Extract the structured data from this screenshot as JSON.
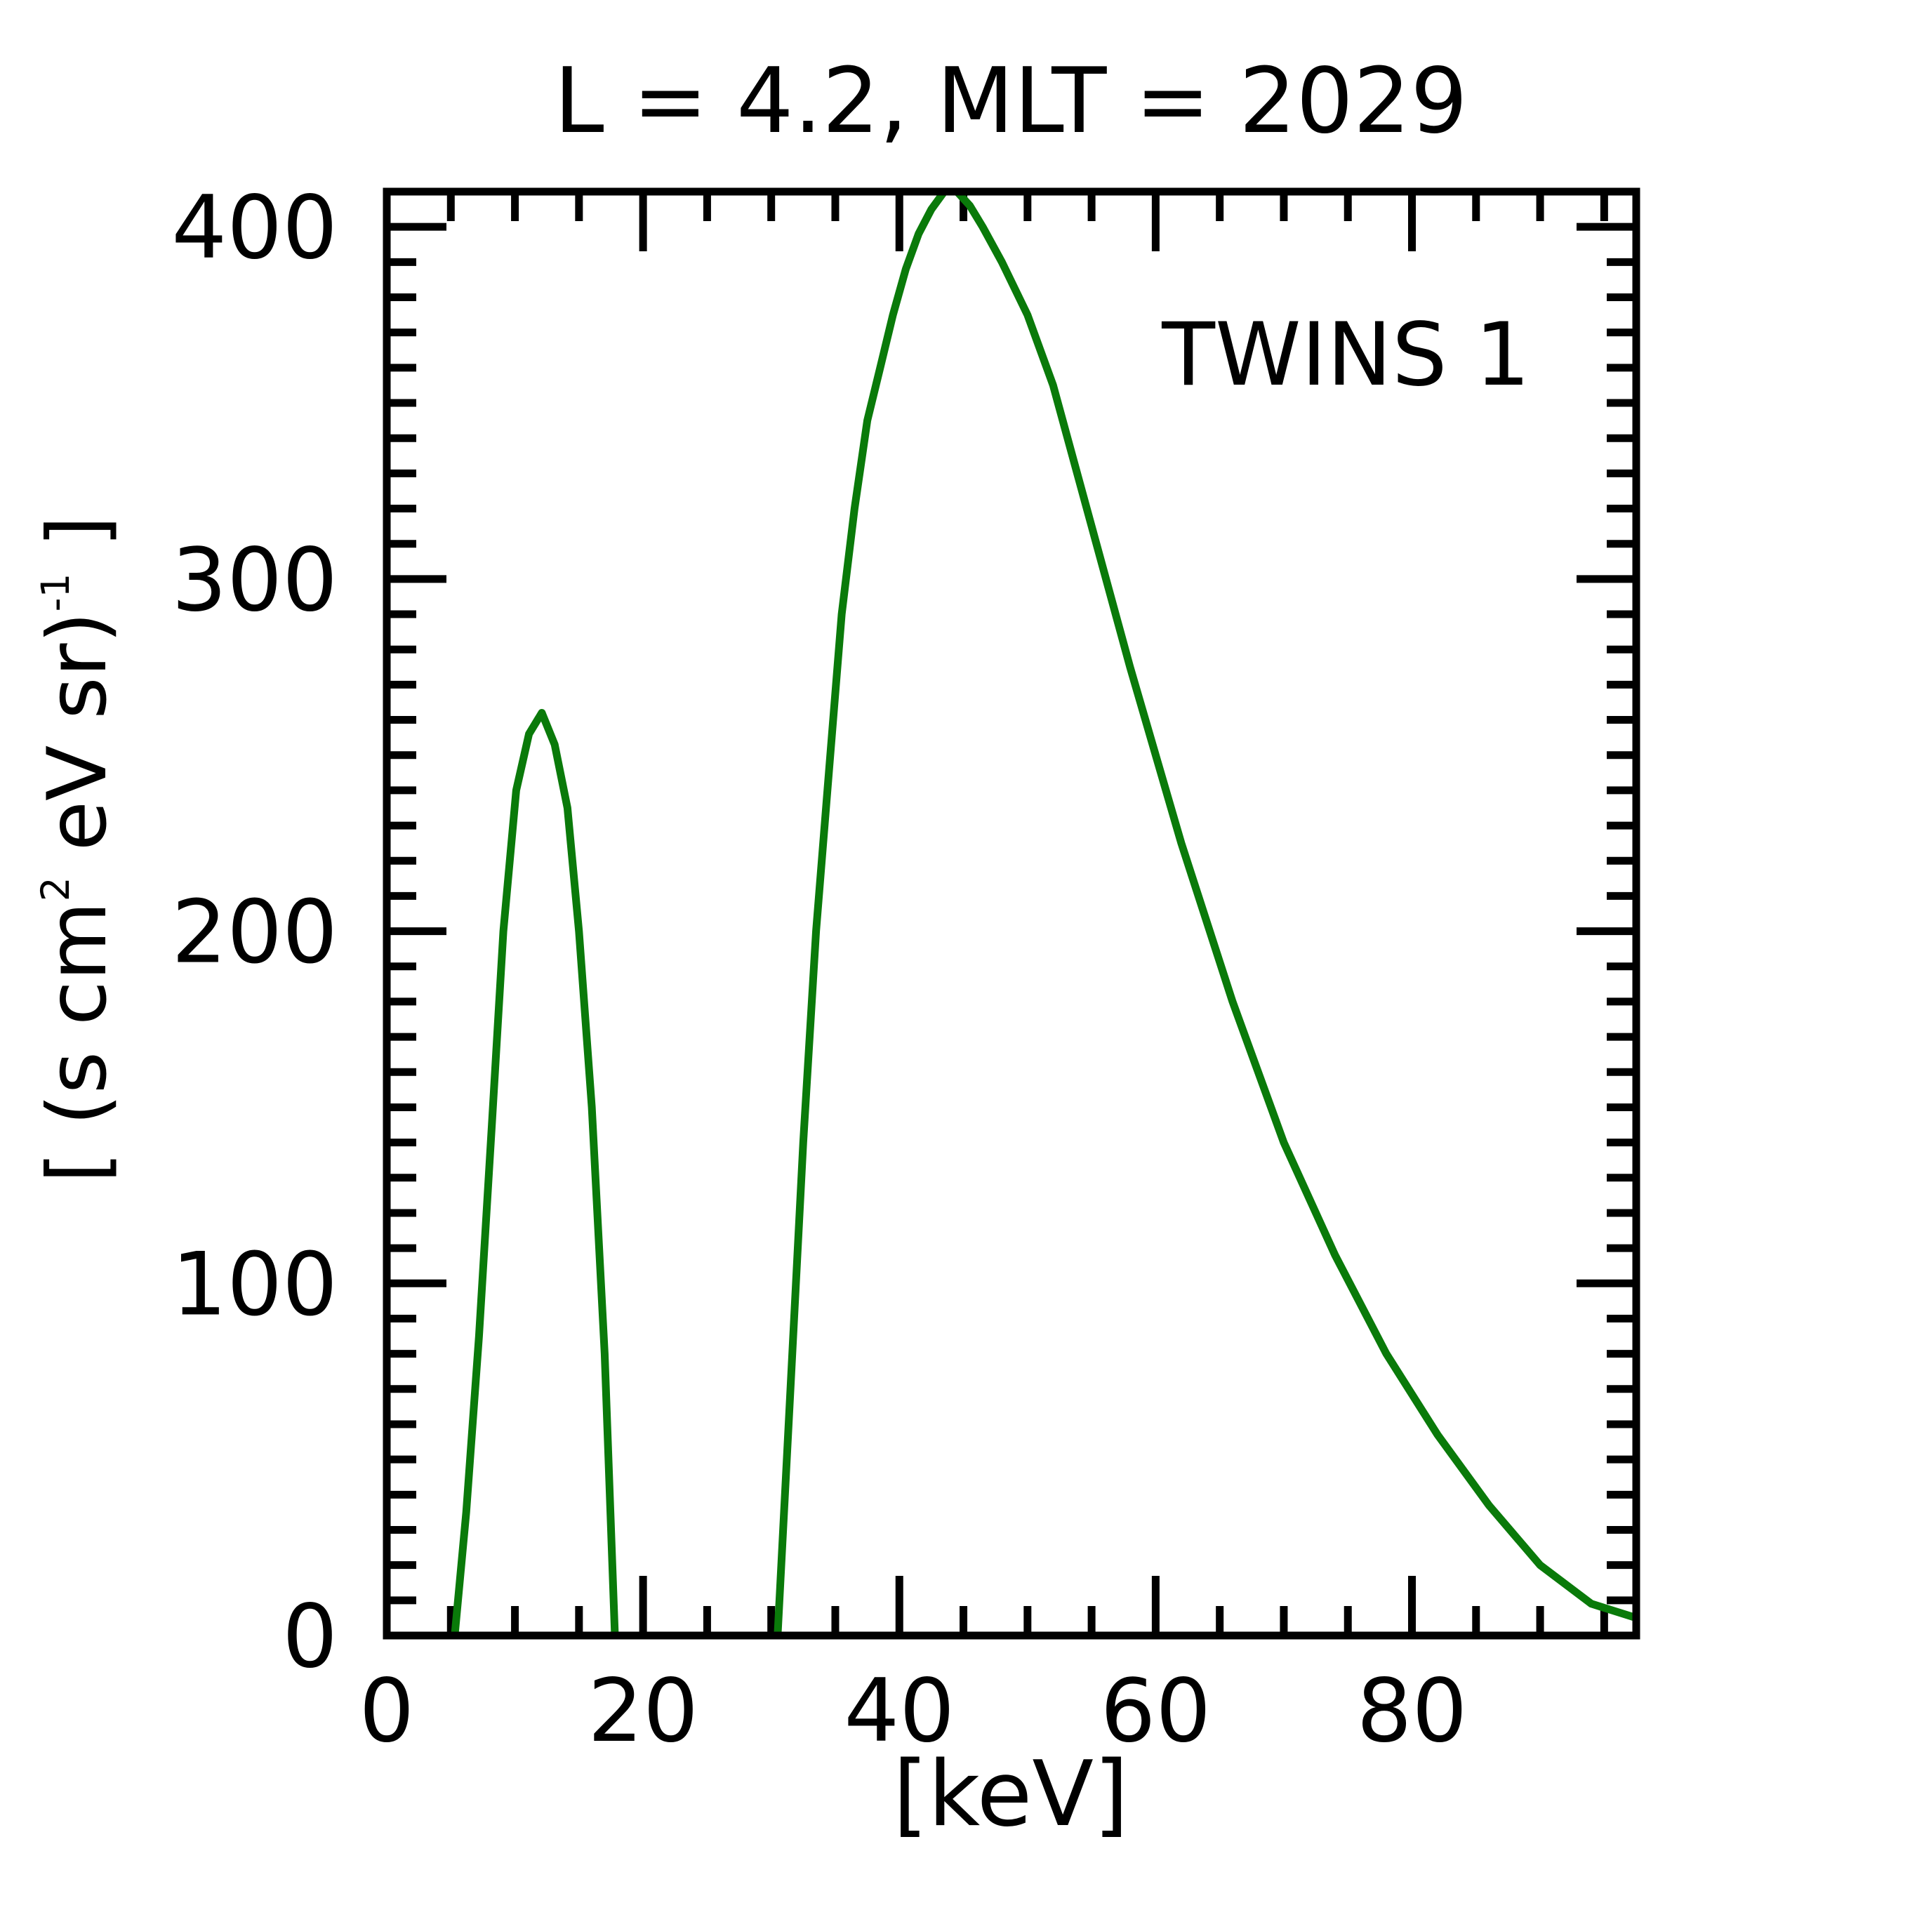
{
  "chart_data": {
    "type": "line",
    "title": "L =  4.2, MLT = 2029",
    "xlabel": "[keV]",
    "ylabel_parts": {
      "open": "[ (s cm",
      "sup1": "2",
      "mid": " eV sr)",
      "sup2": "-1",
      "close": " ]"
    },
    "xlim": [
      0,
      97.5
    ],
    "ylim": [
      0,
      410
    ],
    "x_ticks": [
      0,
      20,
      40,
      60,
      80
    ],
    "x_tick_labels": [
      "0",
      "20",
      "40",
      "60",
      "80"
    ],
    "y_ticks": [
      0,
      100,
      200,
      300,
      400
    ],
    "y_tick_labels": [
      "0",
      "100",
      "200",
      "300",
      "400"
    ],
    "x_minor_step": 5,
    "y_minor_step": 10,
    "grid": false,
    "legend_position": "top-right",
    "series": [
      {
        "name": "TWINS 1",
        "color": "#0a7a0a",
        "segments": [
          {
            "x": [
              5.3,
              6.2,
              7.2,
              8.2,
              9.1,
              10.1,
              11.1,
              12.1,
              13.1,
              14.1,
              15.0,
              16.0,
              17.0,
              17.8
            ],
            "y": [
              0,
              35,
              85,
              145,
              200,
              240,
              256,
              262,
              253,
              235,
              200,
              150,
              80,
              0
            ]
          },
          {
            "x": [
              30.5,
              31.5,
              32.5,
              33.5,
              34.5,
              35.5,
              36.5,
              37.5,
              38.5,
              39.5,
              40.5,
              41.5,
              42.5,
              43.5,
              44.5,
              45.5,
              46.5,
              48,
              50,
              52,
              55,
              58,
              62,
              66,
              70,
              74,
              78,
              82,
              86,
              90,
              94,
              97.5
            ],
            "y": [
              0,
              70,
              140,
              200,
              245,
              290,
              320,
              345,
              360,
              375,
              388,
              398,
              405,
              410,
              410,
              406,
              400,
              390,
              375,
              355,
              315,
              275,
              225,
              180,
              140,
              108,
              80,
              57,
              37,
              20,
              9,
              5
            ]
          }
        ]
      }
    ]
  }
}
